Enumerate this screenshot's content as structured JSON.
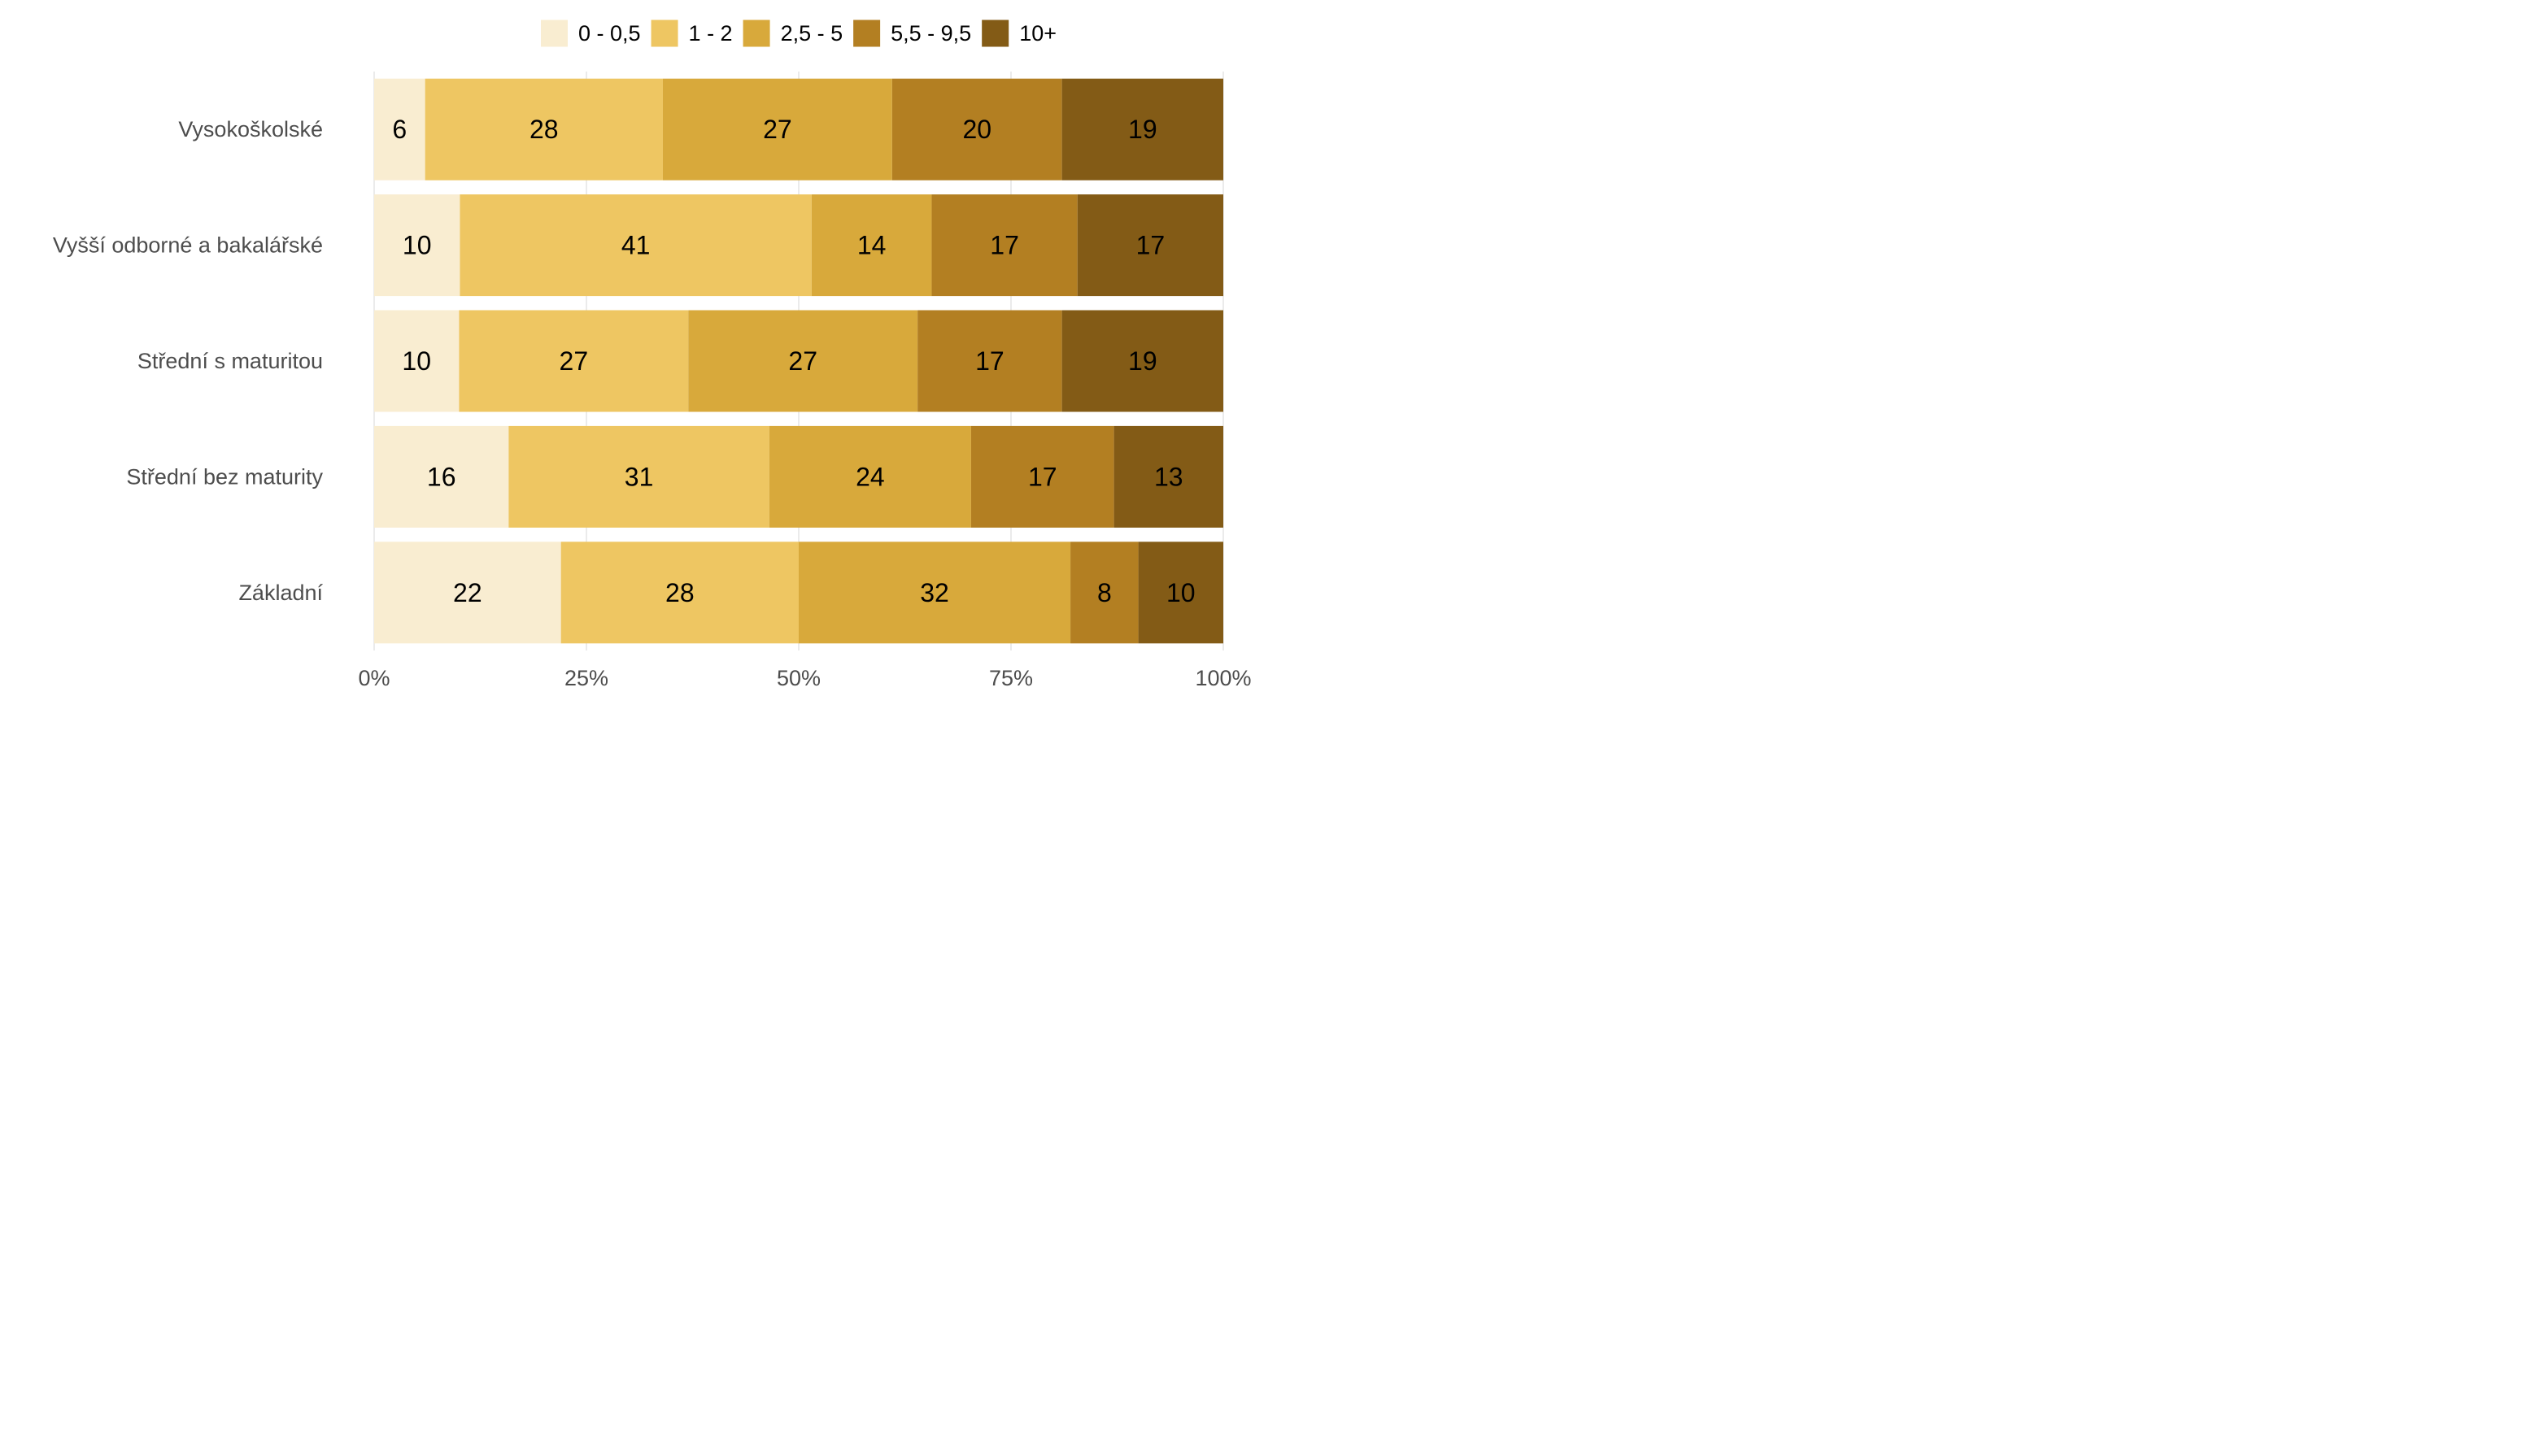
{
  "chart_data": {
    "type": "bar",
    "orientation": "horizontal",
    "stacked": "percent",
    "title": "",
    "xlabel": "",
    "ylabel": "",
    "xlim": [
      0,
      100
    ],
    "x_ticks": [
      0,
      25,
      50,
      75,
      100
    ],
    "x_tick_labels": [
      "0%",
      "25%",
      "50%",
      "75%",
      "100%"
    ],
    "categories": [
      "Vysokoškolské",
      "Vyšší odborné a bakalářské",
      "Střední s maturitou",
      "Střední bez maturity",
      "Základní"
    ],
    "series": [
      {
        "name": "0 - 0,5",
        "color": "#f9edd1",
        "values": [
          6,
          10,
          10,
          16,
          22
        ]
      },
      {
        "name": "1 - 2",
        "color": "#eec662",
        "values": [
          28,
          41,
          27,
          31,
          28
        ]
      },
      {
        "name": "2,5 - 5",
        "color": "#d8a93b",
        "values": [
          27,
          14,
          27,
          24,
          32
        ]
      },
      {
        "name": "5,5 - 9,5",
        "color": "#b37f22",
        "values": [
          20,
          17,
          17,
          17,
          8
        ]
      },
      {
        "name": "10+",
        "color": "#835b16",
        "values": [
          19,
          17,
          19,
          13,
          10
        ]
      }
    ],
    "legend_position": "top",
    "grid": true
  }
}
